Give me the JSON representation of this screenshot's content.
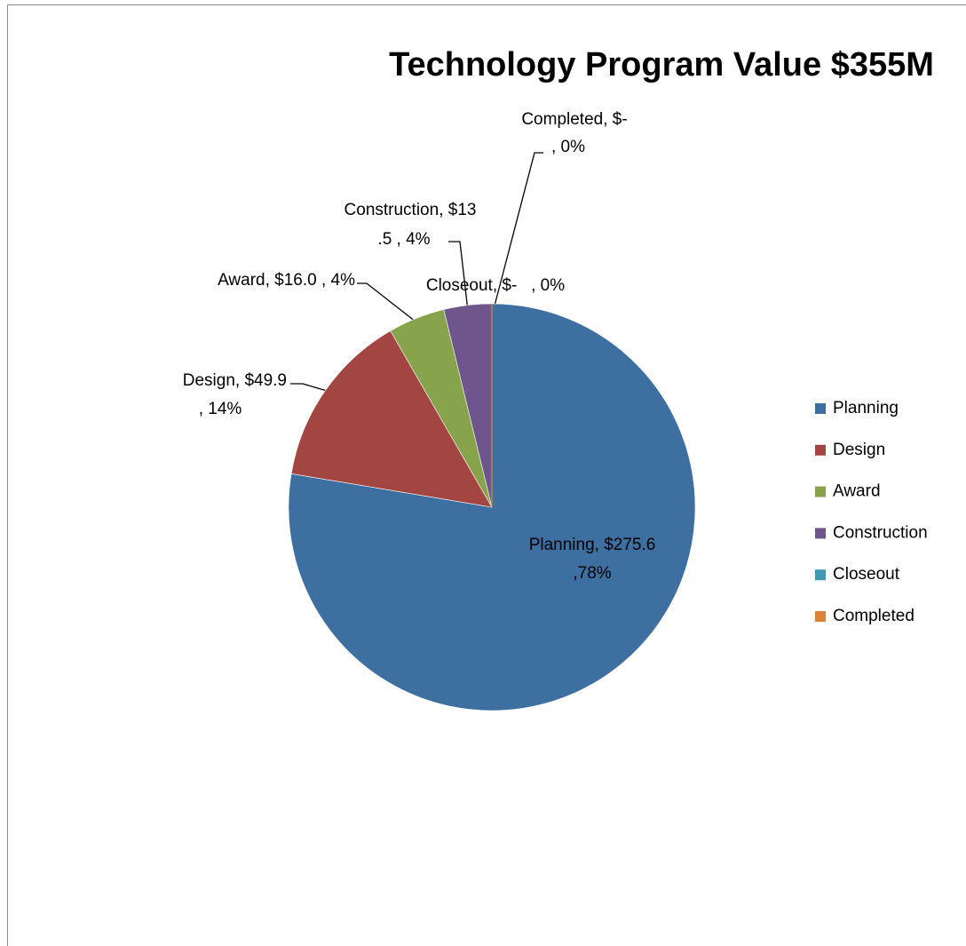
{
  "chart_data": {
    "type": "pie",
    "title": "Technology Program Value $355M",
    "categories": [
      "Planning",
      "Design",
      "Award",
      "Construction",
      "Closeout",
      "Completed"
    ],
    "values": [
      275.6,
      49.9,
      16.0,
      13.5,
      0,
      0
    ],
    "value_labels": [
      [
        "Planning, $275.6",
        ",78%"
      ],
      [
        "Design, $49.9",
        ", 14%"
      ],
      [
        "Award, $16.0 , 4%"
      ],
      [
        "Construction, $13",
        ".5 , 4%"
      ],
      [
        "Closeout, $-   , 0%"
      ],
      [
        "Completed, $-",
        ", 0%"
      ]
    ],
    "colors": [
      "#3d6fa1",
      "#a34642",
      "#87a34b",
      "#6e568c",
      "#3f97b0",
      "#dc8238"
    ],
    "legend": "right"
  }
}
